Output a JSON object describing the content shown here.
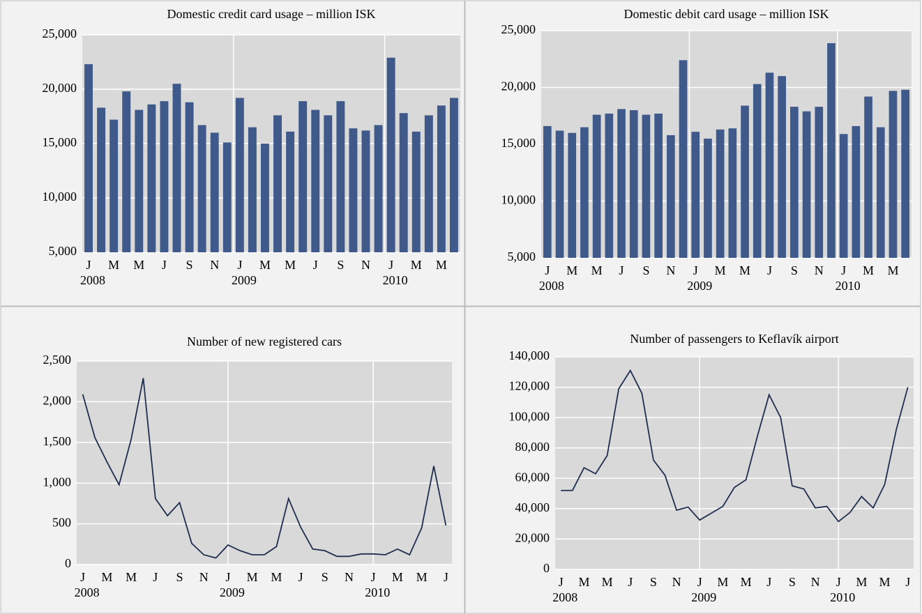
{
  "chart_data": [
    {
      "type": "bar",
      "title": "Domestic credit card usage – million ISK",
      "color": "#3f5a8a",
      "grid": true,
      "categories": [
        "J",
        null,
        "M",
        null,
        "M",
        null,
        "J",
        null,
        "S",
        null,
        "N",
        null,
        "J",
        null,
        "M",
        null,
        "M",
        null,
        "J",
        null,
        "S",
        null,
        "N",
        null,
        "J",
        null,
        "M",
        null,
        "M",
        null
      ],
      "groups": [
        "2008",
        "2009",
        "2010"
      ],
      "values": [
        22300,
        18300,
        17200,
        19800,
        18100,
        18600,
        18900,
        20500,
        18800,
        16700,
        16000,
        15100,
        19200,
        16500,
        15000,
        17600,
        16100,
        18900,
        18100,
        17600,
        18900,
        16400,
        16200,
        16700,
        22900,
        17800,
        16100,
        17600,
        18500,
        19200
      ],
      "ylim": [
        5000,
        25000
      ],
      "yticks": [
        {
          "value": 5000,
          "label": "5,000"
        },
        {
          "value": 10000,
          "label": "10,000"
        },
        {
          "value": 15000,
          "label": "15,000"
        },
        {
          "value": 20000,
          "label": "20,000"
        },
        {
          "value": 25000,
          "label": "25,000"
        }
      ]
    },
    {
      "type": "bar",
      "title": "Domestic debit card usage – million ISK",
      "color": "#3f5a8a",
      "grid": true,
      "categories": [
        "J",
        null,
        "M",
        null,
        "M",
        null,
        "J",
        null,
        "S",
        null,
        "N",
        null,
        "J",
        null,
        "M",
        null,
        "M",
        null,
        "J",
        null,
        "S",
        null,
        "N",
        null,
        "J",
        null,
        "M",
        null,
        "M",
        null
      ],
      "groups": [
        "2008",
        "2009",
        "2010"
      ],
      "values": [
        16600,
        16200,
        16000,
        16500,
        17600,
        17700,
        18100,
        18000,
        17600,
        17700,
        15800,
        22400,
        16100,
        15500,
        16300,
        16400,
        18400,
        20300,
        21300,
        21000,
        18300,
        17900,
        18300,
        23900,
        15900,
        16600,
        19200,
        16500,
        19700,
        19800
      ],
      "ylim": [
        5000,
        25000
      ],
      "yticks": [
        {
          "value": 5000,
          "label": "5,000"
        },
        {
          "value": 10000,
          "label": "10,000"
        },
        {
          "value": 15000,
          "label": "15,000"
        },
        {
          "value": 20000,
          "label": "20,000"
        },
        {
          "value": 25000,
          "label": "25,000"
        }
      ]
    },
    {
      "type": "line",
      "title": "Number of new registered cars",
      "color": "#1f2d4f",
      "grid": true,
      "categories": [
        "J",
        null,
        "M",
        null,
        "M",
        null,
        "J",
        null,
        "S",
        null,
        "N",
        null,
        "J",
        null,
        "M",
        null,
        "M",
        null,
        "J",
        null,
        "S",
        null,
        "N",
        null,
        "J",
        null,
        "M",
        null,
        "M",
        null,
        "J"
      ],
      "groups": [
        "2008",
        "2009",
        "2010"
      ],
      "values": [
        2090,
        1560,
        1260,
        980,
        1540,
        2290,
        810,
        600,
        760,
        260,
        120,
        80,
        240,
        170,
        120,
        120,
        220,
        810,
        460,
        190,
        170,
        100,
        100,
        130,
        130,
        120,
        190,
        120,
        450,
        1210,
        480
      ],
      "ylim": [
        0,
        2500
      ],
      "yticks": [
        0,
        500,
        {
          "value": 1000,
          "label": "1,000"
        },
        {
          "value": 1500,
          "label": "1,500"
        },
        {
          "value": 2000,
          "label": "2,000"
        },
        {
          "value": 2500,
          "label": "2,500"
        }
      ]
    },
    {
      "type": "line",
      "title": "Number of passengers to Keflavík airport",
      "color": "#1f2d4f",
      "grid": true,
      "categories": [
        "J",
        null,
        "M",
        null,
        "M",
        null,
        "J",
        null,
        "S",
        null,
        "N",
        null,
        "J",
        null,
        "M",
        null,
        "M",
        null,
        "J",
        null,
        "S",
        null,
        "N",
        null,
        "J",
        null,
        "M",
        null,
        "M",
        null,
        "J"
      ],
      "groups": [
        "2008",
        "2009",
        "2010"
      ],
      "values": [
        52000,
        52000,
        67000,
        63000,
        75000,
        119000,
        131000,
        116000,
        72000,
        62000,
        39000,
        41000,
        32500,
        37000,
        41500,
        54000,
        59000,
        88000,
        115000,
        100000,
        55000,
        53000,
        40500,
        41500,
        31500,
        37500,
        48000,
        40500,
        56000,
        92000,
        120000
      ],
      "ylim": [
        0,
        140000
      ],
      "yticks": [
        0,
        {
          "value": 20000,
          "label": "20,000"
        },
        {
          "value": 40000,
          "label": "40,000"
        },
        {
          "value": 60000,
          "label": "60,000"
        },
        {
          "value": 80000,
          "label": "80,000"
        },
        {
          "value": 100000,
          "label": "100,000"
        },
        {
          "value": 120000,
          "label": "120,000"
        },
        {
          "value": 140000,
          "label": "140,000"
        }
      ]
    }
  ]
}
